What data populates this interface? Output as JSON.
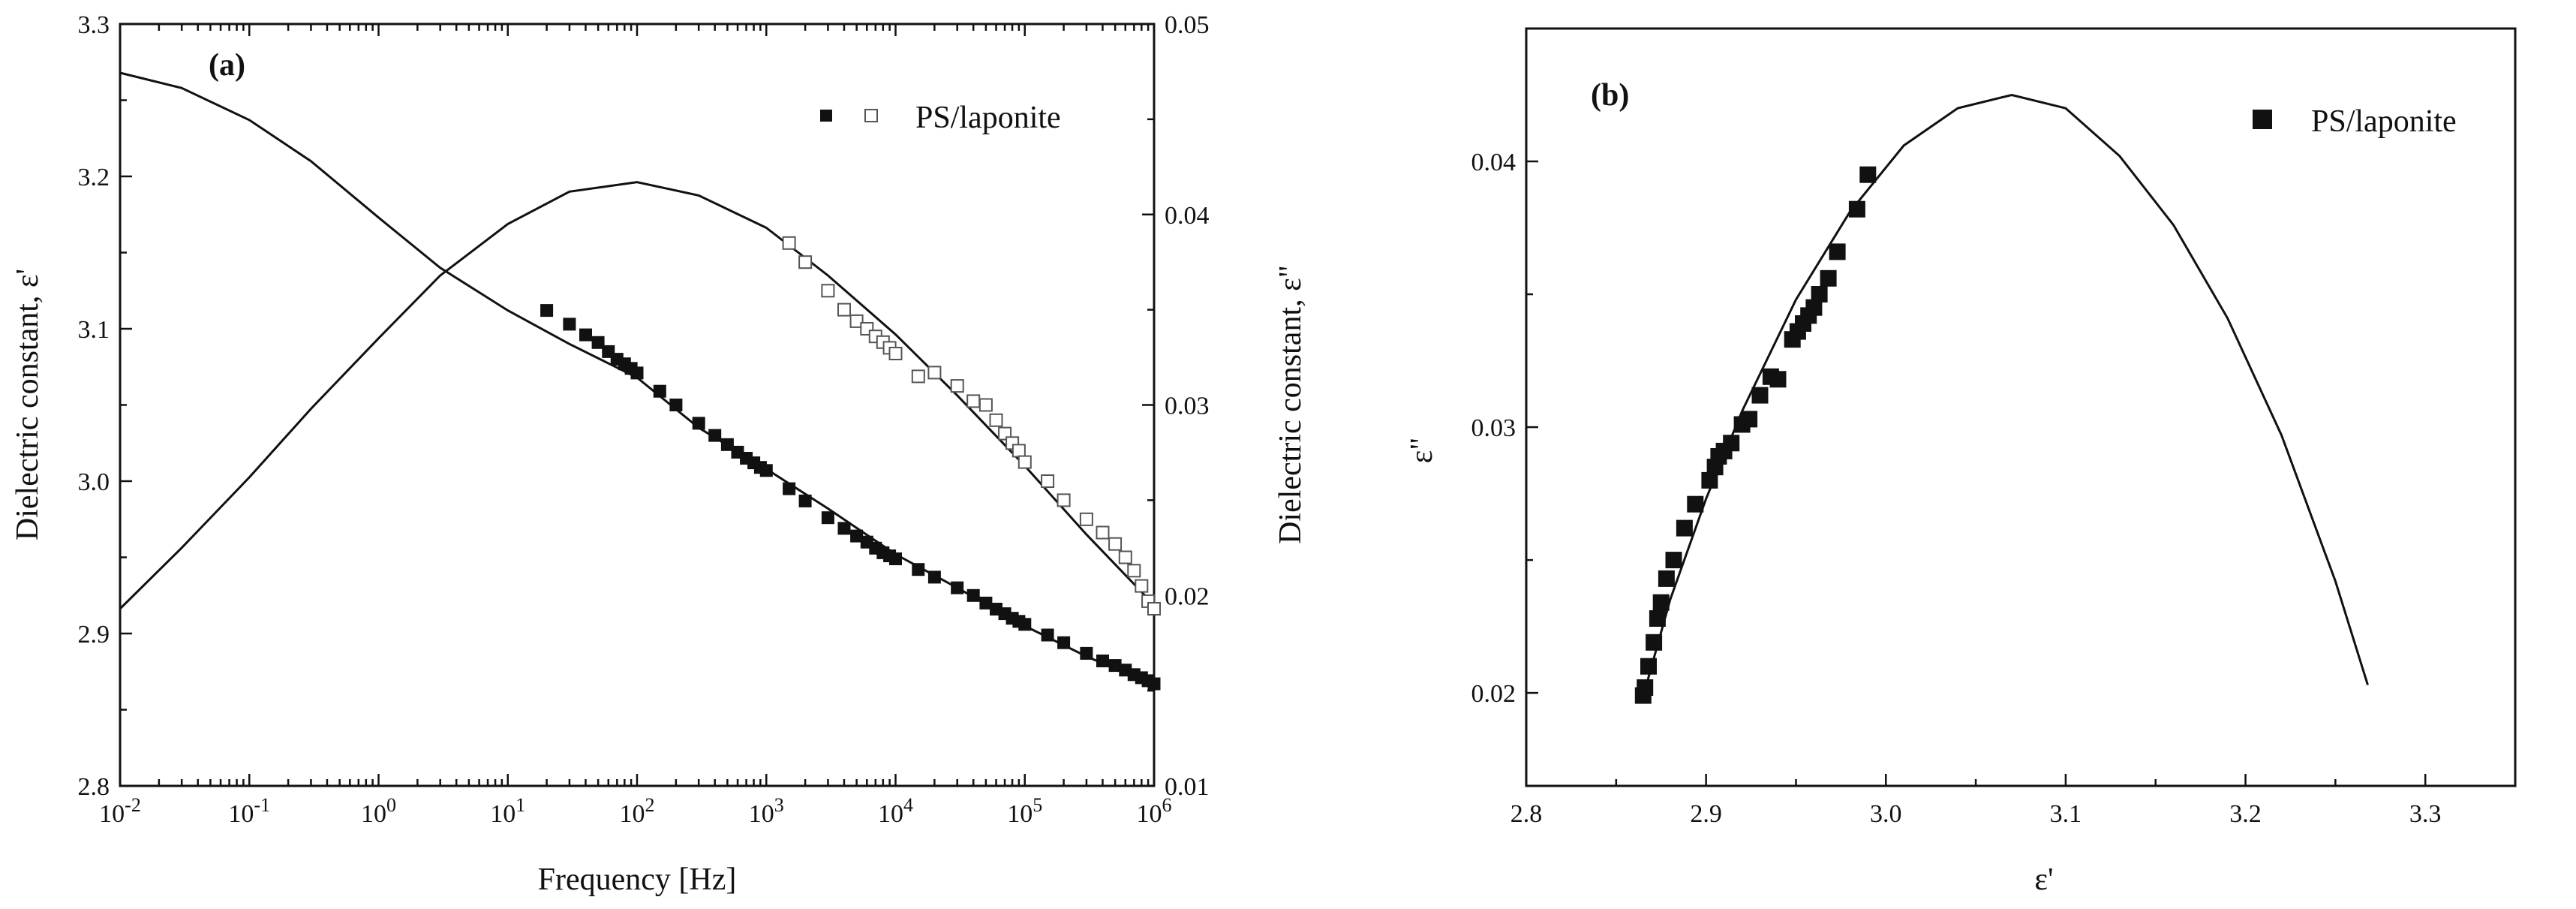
{
  "chart_data": [
    {
      "panel": "(a)",
      "type": "scatter",
      "xscale": "log",
      "xlabel": "Frequency [Hz]",
      "ylabel": "Dielectric constant, ε'",
      "y2label": "Dielectric constant, ε\"",
      "xlim": [
        0.01,
        1000000
      ],
      "ylim": [
        2.8,
        3.3
      ],
      "y2lim": [
        0.01,
        0.05
      ],
      "x_ticks": [
        {
          "value": 0.01,
          "base": "10",
          "exp": "-2"
        },
        {
          "value": 0.1,
          "base": "10",
          "exp": "-1"
        },
        {
          "value": 1,
          "base": "10",
          "exp": "0"
        },
        {
          "value": 10,
          "base": "10",
          "exp": "1"
        },
        {
          "value": 100,
          "base": "10",
          "exp": "2"
        },
        {
          "value": 1000,
          "base": "10",
          "exp": "3"
        },
        {
          "value": 10000,
          "base": "10",
          "exp": "4"
        },
        {
          "value": 100000,
          "base": "10",
          "exp": "5"
        },
        {
          "value": 1000000,
          "base": "10",
          "exp": "6"
        }
      ],
      "y_ticks": [
        "2.8",
        "2.9",
        "3.0",
        "3.1",
        "3.2",
        "3.3"
      ],
      "y2_ticks": [
        "0.01",
        "0.02",
        "0.03",
        "0.04",
        "0.05"
      ],
      "legend": {
        "label": "PS/laponite",
        "position": "top-right"
      },
      "series": [
        {
          "name": "ε' (filled squares)",
          "axis": "left",
          "marker": "filled-square",
          "x": [
            20,
            30,
            40,
            50,
            60,
            70,
            80,
            90,
            100,
            150,
            200,
            300,
            400,
            500,
            600,
            700,
            800,
            900,
            1000,
            1500,
            2000,
            3000,
            4000,
            5000,
            6000,
            7000,
            8000,
            9000,
            10000,
            15000,
            20000,
            30000,
            40000,
            50000,
            60000,
            70000,
            80000,
            90000,
            100000,
            150000,
            200000,
            300000,
            400000,
            500000,
            600000,
            700000,
            800000,
            900000,
            1000000
          ],
          "y": [
            3.112,
            3.103,
            3.096,
            3.091,
            3.085,
            3.08,
            3.077,
            3.074,
            3.071,
            3.059,
            3.05,
            3.038,
            3.03,
            3.024,
            3.019,
            3.015,
            3.012,
            3.009,
            3.007,
            2.995,
            2.987,
            2.976,
            2.969,
            2.964,
            2.96,
            2.956,
            2.953,
            2.951,
            2.949,
            2.942,
            2.937,
            2.93,
            2.925,
            2.92,
            2.916,
            2.913,
            2.91,
            2.908,
            2.906,
            2.899,
            2.894,
            2.887,
            2.882,
            2.879,
            2.876,
            2.873,
            2.871,
            2.869,
            2.867
          ]
        },
        {
          "name": "ε\" (open squares)",
          "axis": "right",
          "marker": "open-square",
          "x": [
            1500,
            2000,
            3000,
            4000,
            5000,
            6000,
            7000,
            8000,
            9000,
            10000,
            15000,
            20000,
            30000,
            40000,
            50000,
            60000,
            70000,
            80000,
            90000,
            100000,
            150000,
            200000,
            300000,
            400000,
            500000,
            600000,
            700000,
            800000,
            900000,
            1000000
          ],
          "y": [
            0.0385,
            0.0375,
            0.036,
            0.035,
            0.0344,
            0.034,
            0.0336,
            0.0333,
            0.033,
            0.0327,
            0.0315,
            0.0317,
            0.031,
            0.0302,
            0.03,
            0.0292,
            0.0285,
            0.028,
            0.0276,
            0.027,
            0.026,
            0.025,
            0.024,
            0.0233,
            0.0227,
            0.022,
            0.0213,
            0.0205,
            0.0197,
            0.0193
          ]
        }
      ],
      "fit_lines": [
        {
          "name": "ε' fit",
          "axis": "left",
          "x": [
            0.01,
            0.03,
            0.1,
            0.3,
            1,
            3,
            10,
            30,
            100,
            300,
            1000,
            3000,
            10000,
            30000,
            100000,
            300000,
            1000000
          ],
          "y": [
            3.268,
            3.258,
            3.237,
            3.21,
            3.173,
            3.14,
            3.112,
            3.09,
            3.068,
            3.035,
            3.008,
            2.982,
            2.952,
            2.93,
            2.905,
            2.885,
            2.866
          ]
        },
        {
          "name": "ε\" fit",
          "axis": "right",
          "x": [
            0.01,
            0.03,
            0.1,
            0.3,
            1,
            3,
            10,
            30,
            100,
            300,
            1000,
            3000,
            10000,
            30000,
            100000,
            300000,
            1000000
          ],
          "y": [
            0.0193,
            0.0225,
            0.0262,
            0.0298,
            0.0335,
            0.0368,
            0.0395,
            0.0412,
            0.0417,
            0.041,
            0.0393,
            0.0368,
            0.0337,
            0.0305,
            0.0268,
            0.0232,
            0.0195
          ]
        }
      ]
    },
    {
      "panel": "(b)",
      "type": "scatter",
      "xlabel": "ε'",
      "ylabel": "ε\"",
      "xlim": [
        2.8,
        3.35
      ],
      "ylim": [
        0.0165,
        0.045
      ],
      "x_ticks": [
        "2.8",
        "2.9",
        "3.0",
        "3.1",
        "3.2",
        "3.3"
      ],
      "y_ticks": [
        "0.02",
        "0.03",
        "0.04"
      ],
      "legend": {
        "label": "PS/laponite",
        "position": "top-right"
      },
      "series": [
        {
          "name": "PS/laponite",
          "marker": "filled-square",
          "x": [
            2.865,
            2.866,
            2.868,
            2.871,
            2.873,
            2.875,
            2.878,
            2.882,
            2.888,
            2.894,
            2.902,
            2.905,
            2.907,
            2.91,
            2.914,
            2.92,
            2.924,
            2.93,
            2.936,
            2.94,
            2.948,
            2.951,
            2.954,
            2.957,
            2.96,
            2.963,
            2.968,
            2.973,
            2.984,
            2.99
          ],
          "y": [
            0.0199,
            0.0202,
            0.021,
            0.0219,
            0.0228,
            0.0234,
            0.0243,
            0.025,
            0.0262,
            0.0271,
            0.028,
            0.0285,
            0.0289,
            0.0291,
            0.0294,
            0.0301,
            0.0303,
            0.0312,
            0.0319,
            0.0318,
            0.0333,
            0.0336,
            0.0339,
            0.0342,
            0.0345,
            0.035,
            0.0356,
            0.0366,
            0.0382,
            0.0395
          ]
        }
      ],
      "fit_lines": [
        {
          "name": "fit",
          "x": [
            2.866,
            2.88,
            2.9,
            2.92,
            2.95,
            2.98,
            3.01,
            3.04,
            3.07,
            3.1,
            3.13,
            3.16,
            3.19,
            3.22,
            3.25,
            3.268
          ],
          "y": [
            0.0201,
            0.0235,
            0.0273,
            0.0306,
            0.0348,
            0.0381,
            0.0406,
            0.042,
            0.0425,
            0.042,
            0.0402,
            0.0376,
            0.0341,
            0.0297,
            0.0242,
            0.0203
          ]
        }
      ]
    }
  ]
}
